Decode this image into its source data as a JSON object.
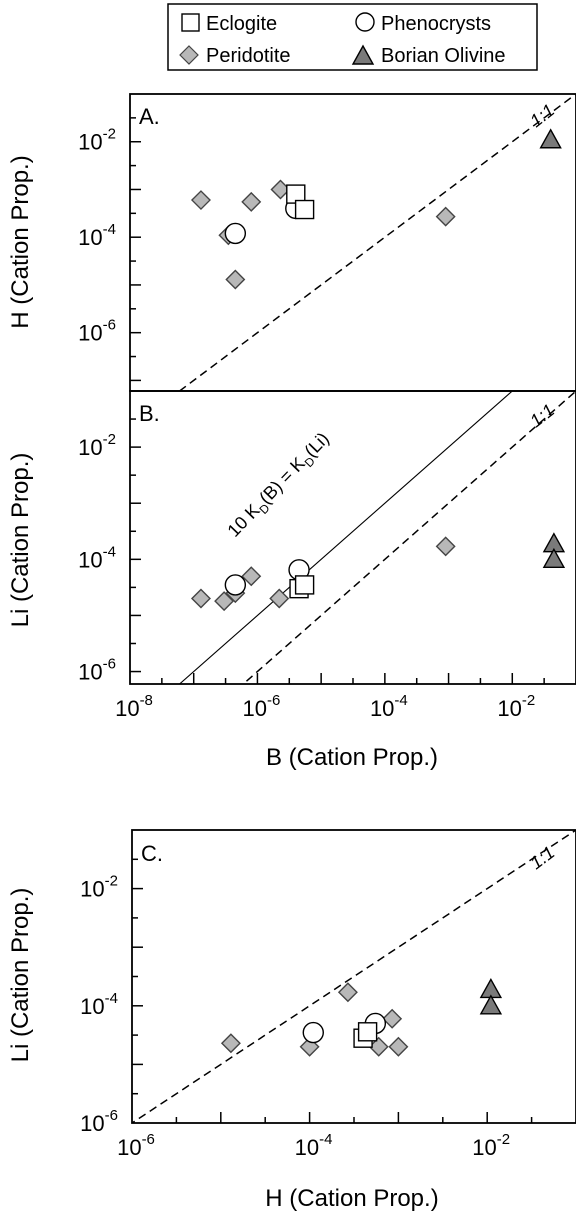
{
  "legend": {
    "items": [
      {
        "label": "Eclogite",
        "marker": "square",
        "color": "#ffffff"
      },
      {
        "label": "Phenocrysts",
        "marker": "circle",
        "color": "#ffffff"
      },
      {
        "label": "Peridotite",
        "marker": "diamond",
        "color": "#b8b8b8"
      },
      {
        "label": "Borian Olivine",
        "marker": "triangle",
        "color": "#7a7a7a"
      }
    ]
  },
  "chart_data": [
    {
      "type": "scatter",
      "panel_label": "A.",
      "xscale": "log",
      "yscale": "log",
      "xlim": [
        1e-08,
        0.1
      ],
      "ylim": [
        6e-08,
        0.1
      ],
      "xlabel": "",
      "ylabel": "H (Cation Prop.)",
      "yticks": [
        {
          "v": 1e-06,
          "label": "10",
          "exp": "-6"
        },
        {
          "v": 0.0001,
          "label": "10",
          "exp": "-4"
        },
        {
          "v": 0.01,
          "label": "10",
          "exp": "-2"
        }
      ],
      "xticks": [],
      "line_label": "1:1",
      "series": [
        {
          "name": "Peridotite",
          "x": [
            1.3e-07,
            3.5e-07,
            4.5e-07,
            8e-07,
            2.3e-06,
            0.0009
          ],
          "y": [
            0.0006,
            0.00011,
            1.3e-05,
            0.00055,
            0.001,
            0.00027
          ]
        },
        {
          "name": "Phenocrysts",
          "x": [
            4.5e-07,
            4e-06
          ],
          "y": [
            0.00012,
            0.0004
          ]
        },
        {
          "name": "Eclogite",
          "x": [
            4e-06,
            5.5e-06
          ],
          "y": [
            0.0008,
            0.00038
          ]
        },
        {
          "name": "Borian Olivine",
          "x": [
            0.04
          ],
          "y": [
            0.011
          ]
        }
      ]
    },
    {
      "type": "scatter",
      "panel_label": "B.",
      "xscale": "log",
      "yscale": "log",
      "xlim": [
        1e-08,
        0.1
      ],
      "ylim": [
        6e-07,
        0.1
      ],
      "xlabel": "B (Cation Prop.)",
      "ylabel": "Li (Cation Prop.)",
      "yticks": [
        {
          "v": 1e-06,
          "label": "10",
          "exp": "-6"
        },
        {
          "v": 0.0001,
          "label": "10",
          "exp": "-4"
        },
        {
          "v": 0.01,
          "label": "10",
          "exp": "-2"
        }
      ],
      "xticks": [
        {
          "v": 1e-08,
          "label": "10",
          "exp": "-8"
        },
        {
          "v": 1e-06,
          "label": "10",
          "exp": "-6"
        },
        {
          "v": 0.0001,
          "label": "10",
          "exp": "-4"
        },
        {
          "v": 0.01,
          "label": "10",
          "exp": "-2"
        }
      ],
      "line_label": "1:1",
      "line2_label": {
        "pre": "10 K",
        "sub1": "D",
        "mid": "(B) = K",
        "sub2": "D",
        "post": "(Li)"
      },
      "series": [
        {
          "name": "Peridotite",
          "x": [
            1.3e-07,
            3e-07,
            4.5e-07,
            8e-07,
            2.2e-06,
            0.0009
          ],
          "y": [
            2e-05,
            1.8e-05,
            2.5e-05,
            5e-05,
            2e-05,
            0.00017
          ]
        },
        {
          "name": "Phenocrysts",
          "x": [
            4.5e-07,
            4.5e-06
          ],
          "y": [
            3.5e-05,
            6.5e-05
          ]
        },
        {
          "name": "Eclogite",
          "x": [
            4.5e-06,
            5.5e-06
          ],
          "y": [
            3e-05,
            3.5e-05
          ]
        },
        {
          "name": "Borian Olivine",
          "x": [
            0.045,
            0.045
          ],
          "y": [
            0.00019,
            0.0001
          ]
        }
      ]
    },
    {
      "type": "scatter",
      "panel_label": "C.",
      "xscale": "log",
      "yscale": "log",
      "xlim": [
        1e-06,
        0.1
      ],
      "ylim": [
        1e-06,
        0.1
      ],
      "xlabel": "H (Cation Prop.)",
      "ylabel": "Li (Cation Prop.)",
      "yticks": [
        {
          "v": 1e-06,
          "label": "10",
          "exp": "-6"
        },
        {
          "v": 0.0001,
          "label": "10",
          "exp": "-4"
        },
        {
          "v": 0.01,
          "label": "10",
          "exp": "-2"
        }
      ],
      "xticks": [
        {
          "v": 1e-06,
          "label": "10",
          "exp": "-6"
        },
        {
          "v": 0.0001,
          "label": "10",
          "exp": "-4"
        },
        {
          "v": 0.01,
          "label": "10",
          "exp": "-2"
        }
      ],
      "line_label": "1:1",
      "series": [
        {
          "name": "Peridotite",
          "x": [
            1.3e-05,
            0.0001,
            0.00027,
            0.0006,
            0.00085,
            0.001
          ],
          "y": [
            2.3e-05,
            2e-05,
            0.00017,
            2e-05,
            6e-05,
            2e-05
          ]
        },
        {
          "name": "Phenocrysts",
          "x": [
            0.00011,
            0.00055
          ],
          "y": [
            3.5e-05,
            5e-05
          ]
        },
        {
          "name": "Eclogite",
          "x": [
            0.0004,
            0.00045
          ],
          "y": [
            2.8e-05,
            3.6e-05
          ]
        },
        {
          "name": "Borian Olivine",
          "x": [
            0.011,
            0.011
          ],
          "y": [
            0.00019,
            0.0001
          ]
        }
      ]
    }
  ]
}
